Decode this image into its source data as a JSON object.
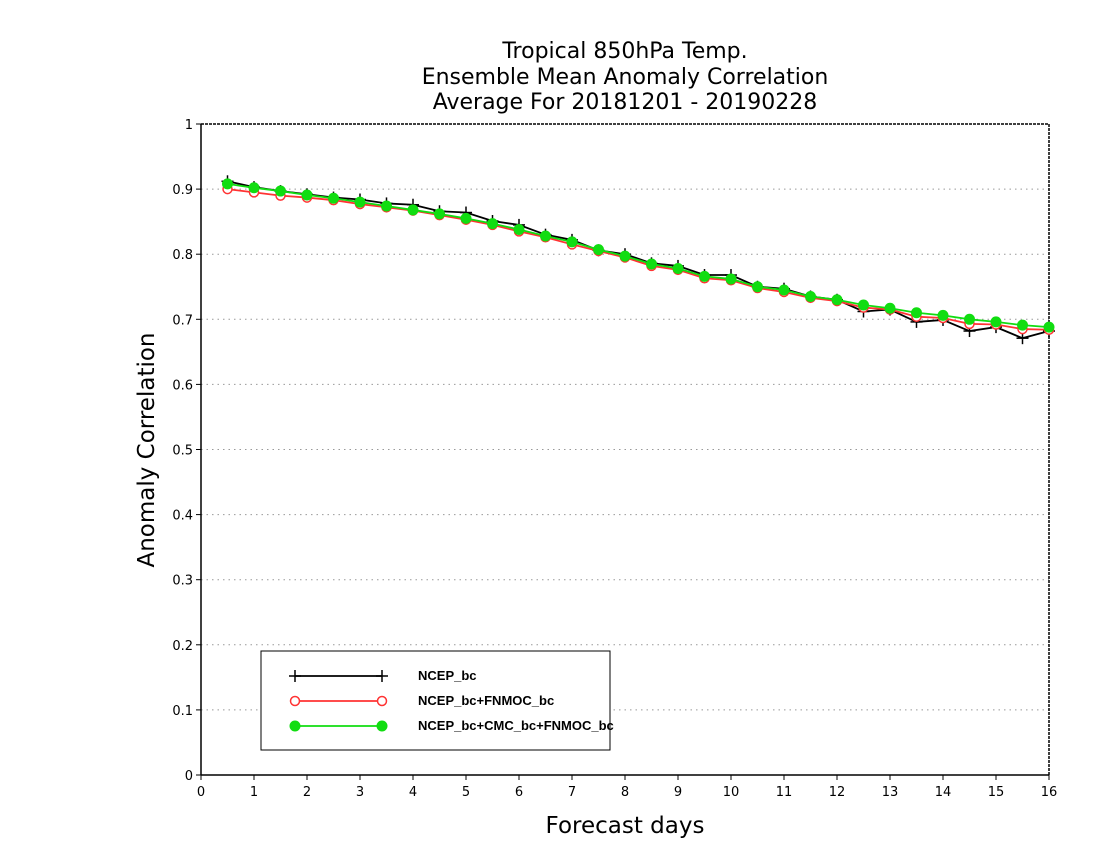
{
  "chart_data": {
    "type": "line",
    "title": [
      "Tropical 850hPa Temp.",
      "Ensemble Mean Anomaly Correlation",
      "Average For 20181201 - 20190228"
    ],
    "xlabel": "Forecast days",
    "ylabel": "Anomaly Correlation",
    "xlim": [
      0,
      16
    ],
    "ylim": [
      0,
      1
    ],
    "xticks": [
      0,
      1,
      2,
      3,
      4,
      5,
      6,
      7,
      8,
      9,
      10,
      11,
      12,
      13,
      14,
      15,
      16
    ],
    "yticks": [
      0,
      0.1,
      0.2,
      0.3,
      0.4,
      0.5,
      0.6,
      0.7,
      0.8,
      0.9,
      1
    ],
    "ytick_labels": [
      "0",
      "0.1",
      "0.2",
      "0.3",
      "0.4",
      "0.5",
      "0.6",
      "0.7",
      "0.8",
      "0.9",
      "1"
    ],
    "grid": "horizontal dotted",
    "legend_position": "bottom-left",
    "x": [
      0.5,
      1,
      1.5,
      2,
      2.5,
      3,
      3.5,
      4,
      4.5,
      5,
      5.5,
      6,
      6.5,
      7,
      7.5,
      8,
      8.5,
      9,
      9.5,
      10,
      10.5,
      11,
      11.5,
      12,
      12.5,
      13,
      13.5,
      14,
      14.5,
      15,
      15.5,
      16
    ],
    "series": [
      {
        "name": "NCEP_bc",
        "color": "#000000",
        "marker": "plus",
        "values": [
          0.912,
          0.903,
          0.897,
          0.892,
          0.887,
          0.884,
          0.878,
          0.876,
          0.866,
          0.864,
          0.851,
          0.845,
          0.83,
          0.822,
          0.806,
          0.8,
          0.786,
          0.782,
          0.768,
          0.768,
          0.75,
          0.747,
          0.735,
          0.73,
          0.712,
          0.715,
          0.696,
          0.699,
          0.682,
          0.688,
          0.671,
          0.682
        ]
      },
      {
        "name": "NCEP_bc+FNMOC_bc",
        "color": "#ff3333",
        "marker": "open-circle",
        "values": [
          0.9,
          0.895,
          0.89,
          0.887,
          0.883,
          0.877,
          0.872,
          0.867,
          0.86,
          0.853,
          0.845,
          0.835,
          0.826,
          0.815,
          0.805,
          0.795,
          0.782,
          0.776,
          0.763,
          0.76,
          0.748,
          0.742,
          0.733,
          0.728,
          0.718,
          0.715,
          0.704,
          0.702,
          0.693,
          0.692,
          0.685,
          0.684
        ]
      },
      {
        "name": "NCEP_bc+CMC_bc+FNMOC_bc",
        "color": "#11dd11",
        "marker": "filled-circle",
        "values": [
          0.908,
          0.902,
          0.897,
          0.891,
          0.886,
          0.88,
          0.874,
          0.868,
          0.862,
          0.855,
          0.847,
          0.838,
          0.828,
          0.819,
          0.807,
          0.797,
          0.785,
          0.778,
          0.766,
          0.762,
          0.75,
          0.745,
          0.735,
          0.73,
          0.722,
          0.717,
          0.71,
          0.706,
          0.7,
          0.696,
          0.691,
          0.688
        ]
      }
    ]
  }
}
